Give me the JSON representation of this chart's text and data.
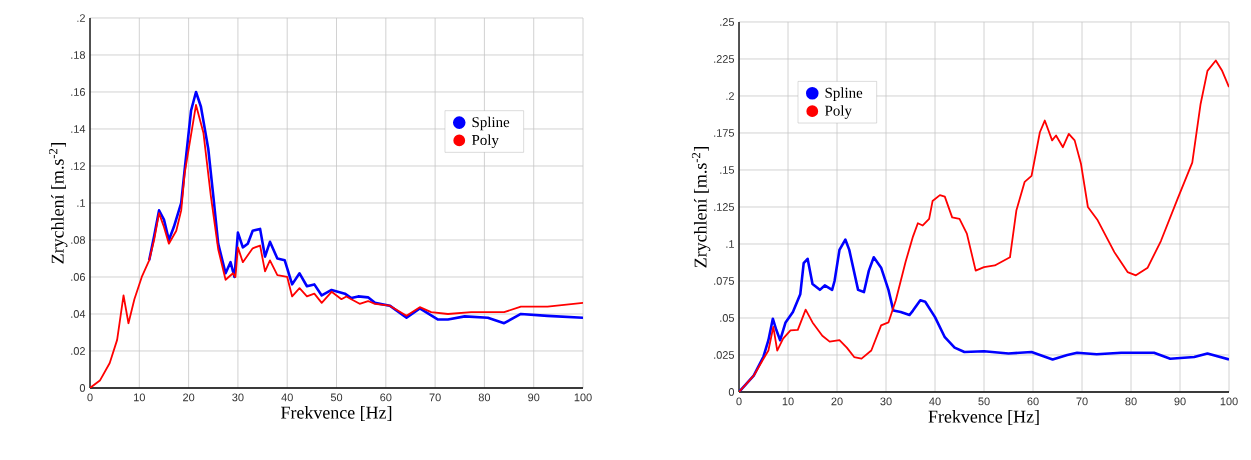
{
  "chart_data": [
    {
      "type": "line",
      "xlabel": "Frekvence [Hz]",
      "ylabel": "Zrychlení [m.s$^{-2}$]",
      "xlim": [
        0,
        100
      ],
      "ylim": [
        0,
        0.2
      ],
      "xticks": [
        0,
        10,
        20,
        30,
        40,
        50,
        60,
        70,
        80,
        90,
        100
      ],
      "yticks": [
        0,
        {
          "value": 0.02,
          "label": ".02"
        },
        {
          "value": 0.04,
          "label": ".04"
        },
        {
          "value": 0.06,
          "label": ".06"
        },
        {
          "value": 0.08,
          "label": ".08"
        },
        {
          "value": 0.1,
          "label": ".1"
        },
        {
          "value": 0.12,
          "label": ".12"
        },
        {
          "value": 0.14,
          "label": ".14"
        },
        {
          "value": 0.16,
          "label": ".16"
        },
        {
          "value": 0.18,
          "label": ".18"
        },
        {
          "value": 0.2,
          "label": ".2"
        }
      ],
      "grid": true,
      "legend": "top right",
      "line_style": "solid",
      "series": [
        {
          "name": "Spline",
          "color": "#0000ff",
          "x": [
            12,
            13,
            14,
            15,
            16,
            17,
            18.5,
            19.2,
            20.5,
            21.5,
            22.5,
            24,
            25,
            26,
            27.5,
            28.5,
            29.3,
            30,
            31,
            32,
            33,
            34.5,
            35.5,
            36.5,
            38,
            39.5,
            41,
            42.5,
            44,
            45.5,
            47,
            49,
            51.7,
            53,
            54.4,
            56.4,
            57.8,
            60.8,
            64.2,
            66.9,
            70.6,
            72.6,
            76,
            80.7,
            84,
            87.4,
            92.8,
            100
          ],
          "values": [
            0.069,
            0.082,
            0.096,
            0.091,
            0.08,
            0.087,
            0.1,
            0.118,
            0.15,
            0.16,
            0.152,
            0.129,
            0.104,
            0.078,
            0.062,
            0.068,
            0.06,
            0.084,
            0.076,
            0.078,
            0.085,
            0.086,
            0.071,
            0.079,
            0.07,
            0.069,
            0.056,
            0.062,
            0.055,
            0.056,
            0.05,
            0.053,
            0.051,
            0.0486,
            0.0495,
            0.049,
            0.046,
            0.0445,
            0.038,
            0.043,
            0.037,
            0.037,
            0.0387,
            0.038,
            0.035,
            0.04,
            0.039,
            0.038
          ]
        },
        {
          "name": "Poly",
          "color": "#ff0000",
          "x": [
            0,
            2,
            4,
            5.5,
            6.8,
            7.8,
            9,
            10.5,
            12,
            13,
            14,
            15,
            16,
            17.5,
            18.5,
            19.2,
            21.5,
            23,
            24.5,
            26,
            27.5,
            29,
            29.5,
            30,
            31,
            33,
            34.5,
            35.5,
            36.5,
            38,
            40,
            41,
            42.5,
            44,
            45.5,
            47,
            49,
            51,
            52,
            53,
            54.7,
            56.4,
            57.8,
            60.8,
            64.2,
            66.9,
            69.2,
            72.6,
            77.3,
            84,
            87.4,
            92.8,
            100
          ],
          "values": [
            0,
            0.004,
            0.0135,
            0.026,
            0.05,
            0.035,
            0.048,
            0.06,
            0.069,
            0.08,
            0.0945,
            0.087,
            0.078,
            0.085,
            0.096,
            0.116,
            0.153,
            0.138,
            0.104,
            0.075,
            0.0585,
            0.062,
            0.06,
            0.076,
            0.068,
            0.0755,
            0.077,
            0.063,
            0.069,
            0.061,
            0.06,
            0.0495,
            0.054,
            0.0495,
            0.051,
            0.046,
            0.052,
            0.048,
            0.0495,
            0.048,
            0.0455,
            0.047,
            0.0455,
            0.0445,
            0.039,
            0.0437,
            0.041,
            0.04,
            0.041,
            0.041,
            0.044,
            0.044,
            0.046
          ]
        }
      ]
    },
    {
      "type": "line",
      "xlabel": "Frekvence [Hz]",
      "ylabel": "Zrychlení [m.s$^{-2}$]",
      "xlim": [
        0,
        100
      ],
      "ylim": [
        0,
        0.25
      ],
      "xticks": [
        0,
        10,
        20,
        30,
        40,
        50,
        60,
        70,
        80,
        90,
        100
      ],
      "yticks": [
        0,
        {
          "value": 0.025,
          "label": ".025"
        },
        {
          "value": 0.05,
          "label": ".05"
        },
        {
          "value": 0.075,
          "label": ".075"
        },
        {
          "value": 0.1,
          "label": ".1"
        },
        {
          "value": 0.125,
          "label": ".125"
        },
        {
          "value": 0.15,
          "label": ".15"
        },
        {
          "value": 0.175,
          "label": ".175"
        },
        {
          "value": 0.2,
          "label": ".2"
        },
        {
          "value": 0.225,
          "label": ".225"
        },
        {
          "value": 0.25,
          "label": ".25"
        }
      ],
      "grid": true,
      "legend": "top left",
      "line_style": "solid",
      "series": [
        {
          "name": "Spline",
          "color": "#0000ff",
          "x": [
            0,
            3,
            5,
            6,
            6.9,
            7.6,
            8.4,
            9.5,
            11,
            12.5,
            13.2,
            14,
            15,
            16.5,
            17.5,
            19,
            19.5,
            20.5,
            21.7,
            22.5,
            24.3,
            25.5,
            26.5,
            27.5,
            29,
            30.5,
            31.5,
            33,
            34.8,
            35.5,
            37,
            38,
            40,
            42,
            44,
            46,
            50,
            55,
            59.7,
            64,
            67,
            69,
            73,
            78,
            84.7,
            88,
            92.9,
            95.6,
            100
          ],
          "values": [
            0,
            0.011,
            0.024,
            0.035,
            0.0495,
            0.042,
            0.035,
            0.047,
            0.054,
            0.066,
            0.087,
            0.09,
            0.073,
            0.069,
            0.072,
            0.069,
            0.075,
            0.096,
            0.103,
            0.096,
            0.069,
            0.0675,
            0.082,
            0.091,
            0.084,
            0.069,
            0.055,
            0.054,
            0.052,
            0.055,
            0.062,
            0.061,
            0.0506,
            0.037,
            0.03,
            0.027,
            0.0275,
            0.026,
            0.027,
            0.022,
            0.025,
            0.0265,
            0.0255,
            0.0265,
            0.0265,
            0.0225,
            0.0236,
            0.026,
            0.022
          ]
        },
        {
          "name": "Poly",
          "color": "#ff0000",
          "x": [
            0,
            3,
            5,
            6,
            7,
            7.8,
            9,
            10.5,
            12,
            13.6,
            15,
            17,
            18.5,
            20.5,
            22,
            23.5,
            25,
            27,
            29,
            30.5,
            32,
            34,
            35.5,
            36.5,
            37.5,
            38.8,
            39.5,
            41,
            42,
            43.5,
            45,
            46.5,
            48.3,
            50,
            52.2,
            55.3,
            56.6,
            58.3,
            59.7,
            61.4,
            62.4,
            63.9,
            64.7,
            66.1,
            67.3,
            68.5,
            69.8,
            71.2,
            73.2,
            76.6,
            79.3,
            81,
            83.4,
            86.1,
            89.5,
            92.5,
            94.2,
            95.6,
            97.3,
            98.6,
            100
          ],
          "values": [
            0,
            0.011,
            0.0225,
            0.028,
            0.044,
            0.028,
            0.036,
            0.0416,
            0.042,
            0.0556,
            0.047,
            0.038,
            0.034,
            0.035,
            0.03,
            0.0236,
            0.0225,
            0.028,
            0.045,
            0.047,
            0.062,
            0.088,
            0.105,
            0.114,
            0.1125,
            0.117,
            0.129,
            0.133,
            0.132,
            0.118,
            0.117,
            0.107,
            0.082,
            0.0844,
            0.0855,
            0.091,
            0.1226,
            0.142,
            0.146,
            0.1755,
            0.1834,
            0.17,
            0.1733,
            0.1654,
            0.1744,
            0.17,
            0.154,
            0.125,
            0.116,
            0.0945,
            0.081,
            0.0788,
            0.084,
            0.102,
            0.1305,
            0.155,
            0.1946,
            0.217,
            0.224,
            0.217,
            0.206
          ]
        }
      ]
    }
  ]
}
